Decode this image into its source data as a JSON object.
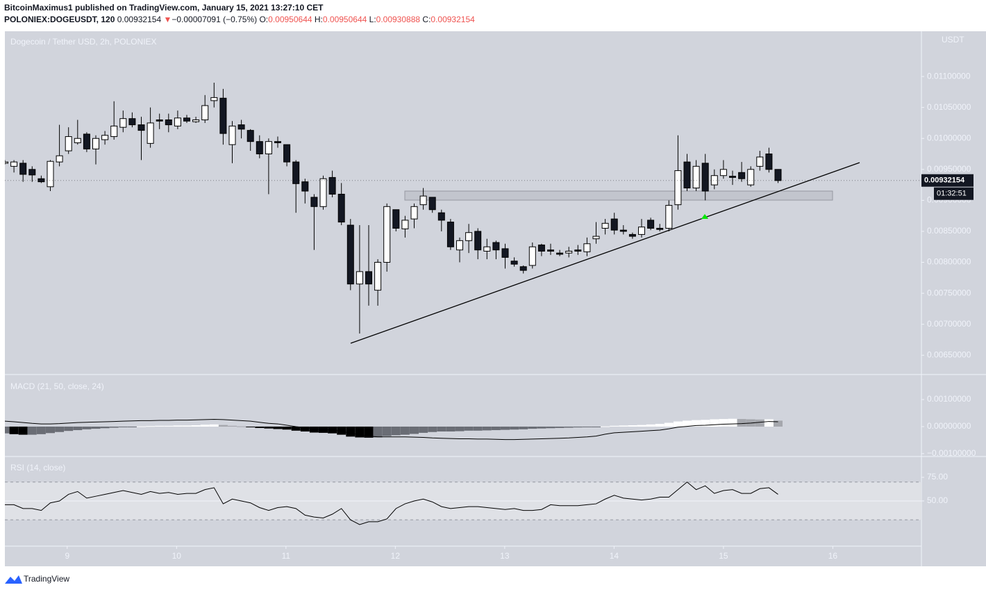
{
  "chart_data": {
    "type": "candlestick",
    "header": {
      "byline": "BitcoinMaximus1 published on TradingView.com, January 15, 2021 13:27:10 CET",
      "symbol": "POLONIEX:DOGEUSDT, 120",
      "last": "0.00932154",
      "arrow": "▼",
      "change": "−0.00007091 (−0.75%)",
      "o_label": "O:",
      "o": "0.00950644",
      "h_label": "H:",
      "h": "0.00950644",
      "l_label": "L:",
      "l": "0.00930888",
      "c_label": "C:",
      "c": "0.00932154"
    },
    "title": "Dogecoin / Tether USD, 2h, POLONIEX",
    "currency": "USDT",
    "last_price": 0.00932154,
    "countdown": "01:32:51",
    "ylim": [
      0.0062,
      0.01173
    ],
    "yticks": [
      {
        "value": 0.011,
        "label": "0.01100000"
      },
      {
        "value": 0.0105,
        "label": "0.01050000"
      },
      {
        "value": 0.01,
        "label": "0.01000000"
      },
      {
        "value": 0.0095,
        "label": "0.00950000"
      },
      {
        "value": 0.009,
        "label": "0.00900000"
      },
      {
        "value": 0.0085,
        "label": "0.00850000"
      },
      {
        "value": 0.008,
        "label": "0.00800000"
      },
      {
        "value": 0.0075,
        "label": "0.00750000"
      },
      {
        "value": 0.007,
        "label": "0.00700000"
      },
      {
        "value": 0.0065,
        "label": "0.00650000"
      }
    ],
    "xlim": [
      8.43,
      16.81
    ],
    "xticks": [
      9,
      10,
      11,
      12,
      13,
      14,
      15,
      16
    ],
    "ohlc": [
      [
        0.0096,
        0.00965,
        0.00958,
        0.00962
      ],
      [
        0.00955,
        0.00965,
        0.00945,
        0.00962
      ],
      [
        0.0096,
        0.00965,
        0.0093,
        0.00942
      ],
      [
        0.0095,
        0.00955,
        0.0093,
        0.00941
      ],
      [
        0.00935,
        0.0094,
        0.00928,
        0.0093
      ],
      [
        0.00922,
        0.00965,
        0.00915,
        0.00963
      ],
      [
        0.00962,
        0.01022,
        0.00955,
        0.00972
      ],
      [
        0.0098,
        0.01018,
        0.00975,
        0.01003
      ],
      [
        0.00993,
        0.0103,
        0.0099,
        0.01
      ],
      [
        0.01007,
        0.0101,
        0.00978,
        0.00983
      ],
      [
        0.00983,
        0.01005,
        0.00958,
        0.01
      ],
      [
        0.00998,
        0.01012,
        0.0099,
        0.01005
      ],
      [
        0.01003,
        0.0106,
        0.00998,
        0.0102
      ],
      [
        0.01018,
        0.01045,
        0.0101,
        0.01032
      ],
      [
        0.01032,
        0.01042,
        0.01018,
        0.01022
      ],
      [
        0.01022,
        0.01035,
        0.00965,
        0.01013
      ],
      [
        0.00992,
        0.0105,
        0.00985,
        0.01025
      ],
      [
        0.0103,
        0.0104,
        0.01015,
        0.01028
      ],
      [
        0.0103,
        0.0104,
        0.0101,
        0.01022
      ],
      [
        0.0102,
        0.01045,
        0.01015,
        0.01033
      ],
      [
        0.01033,
        0.01038,
        0.01025,
        0.01028
      ],
      [
        0.01027,
        0.01035,
        0.01025,
        0.0103
      ],
      [
        0.0103,
        0.0107,
        0.01025,
        0.01053
      ],
      [
        0.01061,
        0.0109,
        0.0105,
        0.01066
      ],
      [
        0.01065,
        0.0108,
        0.0099,
        0.01008
      ],
      [
        0.0099,
        0.01028,
        0.0096,
        0.0102
      ],
      [
        0.01022,
        0.0103,
        0.01,
        0.01015
      ],
      [
        0.01013,
        0.01015,
        0.0098,
        0.00995
      ],
      [
        0.00995,
        0.01005,
        0.00968,
        0.00975
      ],
      [
        0.00975,
        0.01,
        0.0091,
        0.00995
      ],
      [
        0.00995,
        0.01003,
        0.00985,
        0.00993
      ],
      [
        0.0099,
        0.0099,
        0.00955,
        0.00962
      ],
      [
        0.00962,
        0.00965,
        0.0088,
        0.00927
      ],
      [
        0.0093,
        0.00935,
        0.00895,
        0.00915
      ],
      [
        0.00905,
        0.0091,
        0.0082,
        0.0089
      ],
      [
        0.0089,
        0.0094,
        0.00885,
        0.00935
      ],
      [
        0.00937,
        0.00948,
        0.00905,
        0.0091
      ],
      [
        0.0091,
        0.00928,
        0.0086,
        0.00865
      ],
      [
        0.0086,
        0.0087,
        0.00755,
        0.00765
      ],
      [
        0.00765,
        0.0086,
        0.00685,
        0.00785
      ],
      [
        0.00785,
        0.0086,
        0.0073,
        0.00765
      ],
      [
        0.00755,
        0.00805,
        0.0073,
        0.008
      ],
      [
        0.008,
        0.00895,
        0.00785,
        0.0089
      ],
      [
        0.00885,
        0.0088,
        0.0085,
        0.00855
      ],
      [
        0.00854,
        0.00875,
        0.0084,
        0.00868
      ],
      [
        0.0087,
        0.00895,
        0.00855,
        0.0089
      ],
      [
        0.00893,
        0.0092,
        0.00885,
        0.00907
      ],
      [
        0.00905,
        0.00905,
        0.0088,
        0.00885
      ],
      [
        0.0088,
        0.00885,
        0.0085,
        0.00868
      ],
      [
        0.00865,
        0.0087,
        0.0082,
        0.00825
      ],
      [
        0.0082,
        0.0084,
        0.008,
        0.00835
      ],
      [
        0.00835,
        0.00862,
        0.00815,
        0.00848
      ],
      [
        0.0085,
        0.00855,
        0.00805,
        0.0082
      ],
      [
        0.00818,
        0.00838,
        0.00805,
        0.00825
      ],
      [
        0.00832,
        0.00835,
        0.00805,
        0.0082
      ],
      [
        0.00822,
        0.0083,
        0.0079,
        0.00808
      ],
      [
        0.00802,
        0.00808,
        0.00793,
        0.00797
      ],
      [
        0.00793,
        0.00795,
        0.00782,
        0.00787
      ],
      [
        0.00795,
        0.00832,
        0.0079,
        0.00825
      ],
      [
        0.00828,
        0.0083,
        0.0081,
        0.00818
      ],
      [
        0.0082,
        0.0083,
        0.00812,
        0.00818
      ],
      [
        0.00815,
        0.0082,
        0.0081,
        0.00813
      ],
      [
        0.00815,
        0.00825,
        0.00808,
        0.00818
      ],
      [
        0.0082,
        0.00828,
        0.00812,
        0.00818
      ],
      [
        0.00817,
        0.0084,
        0.0081,
        0.0083
      ],
      [
        0.00838,
        0.00865,
        0.0083,
        0.00842
      ],
      [
        0.00855,
        0.0087,
        0.00845,
        0.00863
      ],
      [
        0.0087,
        0.0088,
        0.00845,
        0.00852
      ],
      [
        0.00852,
        0.0086,
        0.00845,
        0.0085
      ],
      [
        0.00845,
        0.00848,
        0.00838,
        0.00842
      ],
      [
        0.00845,
        0.0087,
        0.0084,
        0.00857
      ],
      [
        0.00868,
        0.00872,
        0.00852,
        0.00855
      ],
      [
        0.00855,
        0.00862,
        0.0085,
        0.00853
      ],
      [
        0.00855,
        0.009,
        0.0085,
        0.00892
      ],
      [
        0.00893,
        0.01005,
        0.00885,
        0.00948
      ],
      [
        0.00962,
        0.00975,
        0.00915,
        0.0092
      ],
      [
        0.0092,
        0.00965,
        0.00915,
        0.00955
      ],
      [
        0.0096,
        0.00975,
        0.009,
        0.00915
      ],
      [
        0.00925,
        0.0095,
        0.00918,
        0.0094
      ],
      [
        0.0094,
        0.00965,
        0.00935,
        0.0095
      ],
      [
        0.00939,
        0.00948,
        0.00925,
        0.00937
      ],
      [
        0.00945,
        0.00962,
        0.0093,
        0.00935
      ],
      [
        0.00925,
        0.00955,
        0.00922,
        0.0095
      ],
      [
        0.00955,
        0.0098,
        0.00948,
        0.0097
      ],
      [
        0.00975,
        0.00985,
        0.00945,
        0.0095
      ],
      [
        0.0095,
        0.0095,
        0.00928,
        0.00932
      ]
    ],
    "macd": {
      "title": "MACD (21, 50, close, 24)",
      "ylim": [
        -0.00108,
        0.0019
      ],
      "yticks": [
        {
          "value": 0.001,
          "label": "0.00100000"
        },
        {
          "value": 0,
          "label": "0.00000000"
        },
        {
          "value": -0.001,
          "label": "−0.00100000"
        }
      ],
      "histogram": [
        -0.00025,
        -0.00028,
        -0.0003,
        -0.0003,
        -0.00028,
        -0.00024,
        -0.0002,
        -0.00016,
        -0.00013,
        -0.0001,
        -8e-05,
        -6e-05,
        -4e-05,
        -2e-05,
        -1e-05,
        1e-05,
        2e-05,
        3e-05,
        3e-05,
        4e-05,
        4e-05,
        5e-05,
        7e-05,
        8e-05,
        6e-05,
        3e-05,
        1e-05,
        -2e-05,
        -5e-05,
        -7e-05,
        -9e-05,
        -0.00011,
        -0.00015,
        -0.00018,
        -0.00022,
        -0.00023,
        -0.00025,
        -0.0003,
        -0.00037,
        -0.0004,
        -0.00041,
        -0.0004,
        -0.00035,
        -0.00032,
        -0.0003,
        -0.00027,
        -0.00023,
        -0.0002,
        -0.00018,
        -0.00018,
        -0.00017,
        -0.00015,
        -0.00015,
        -0.00014,
        -0.00013,
        -0.00012,
        -0.00011,
        -0.0001,
        -8e-05,
        -7e-05,
        -6e-05,
        -5e-05,
        -4e-05,
        -3e-05,
        -2e-05,
        -1e-05,
        1e-05,
        3e-05,
        4e-05,
        5e-05,
        6e-05,
        8e-05,
        0.0001,
        0.00014,
        0.00019,
        0.00022,
        0.00024,
        0.00025,
        0.00027,
        0.00028,
        0.00029,
        0.00028,
        0.00027,
        0.00026,
        0.00027,
        0.00022
      ],
      "line": [
        0.0002,
        0.00018,
        0.00015,
        0.00012,
        0.0001,
        0.0001,
        0.00011,
        0.00013,
        0.00015,
        0.00016,
        0.00017,
        0.00018,
        0.00019,
        0.0002,
        0.00021,
        0.00022,
        0.00022,
        0.00023,
        0.00023,
        0.00024,
        0.00024,
        0.00025,
        0.00026,
        0.00027,
        0.00026,
        0.00024,
        0.00022,
        0.0002,
        0.00016,
        0.00012,
        0.0001,
        5e-05,
        0,
        -4e-05,
        -8e-05,
        -0.0001,
        -0.00013,
        -0.00017,
        -0.00025,
        -0.0003,
        -0.00035,
        -0.00038,
        -0.00038,
        -0.00038,
        -0.00038,
        -0.00039,
        -0.0004,
        -0.00042,
        -0.00043,
        -0.00044,
        -0.00045,
        -0.00045,
        -0.00046,
        -0.00046,
        -0.00047,
        -0.00048,
        -0.00048,
        -0.00047,
        -0.00046,
        -0.00045,
        -0.00044,
        -0.00043,
        -0.00042,
        -0.0004,
        -0.00038,
        -0.00035,
        -0.00028,
        -0.00023,
        -0.00021,
        -0.00019,
        -0.00017,
        -0.00015,
        -0.00013,
        -8e-05,
        -2e-05,
        1e-05,
        4e-05,
        5e-05,
        7e-05,
        9e-05,
        0.0001,
        0.00011,
        0.00013,
        0.00016,
        0.00019,
        0.00018
      ]
    },
    "rsi": {
      "title": "RSI (14, close)",
      "ylim": [
        2.2,
        96.3
      ],
      "yticks": [
        {
          "value": 75,
          "label": "75.00"
        },
        {
          "value": 50,
          "label": "50.00"
        }
      ],
      "band": [
        30,
        70
      ],
      "values": [
        46,
        46,
        42,
        42,
        40,
        48,
        50,
        57,
        60,
        53,
        55,
        57,
        59,
        61,
        59,
        57,
        60,
        58,
        59,
        57,
        58,
        58,
        62,
        64,
        47,
        52,
        50,
        48,
        43,
        40,
        43,
        44,
        42,
        35,
        33,
        32,
        36,
        42,
        30,
        25,
        28,
        28,
        31,
        42,
        47,
        50,
        52,
        49,
        44,
        42,
        43,
        44,
        44,
        43,
        42,
        41,
        42,
        40,
        40,
        41,
        46,
        45,
        45,
        45,
        46,
        47,
        52,
        56,
        53,
        52,
        51,
        52,
        54,
        54,
        62,
        70,
        62,
        66,
        58,
        61,
        62,
        58,
        58,
        63,
        64,
        57
      ]
    },
    "brand": "TradingView"
  }
}
